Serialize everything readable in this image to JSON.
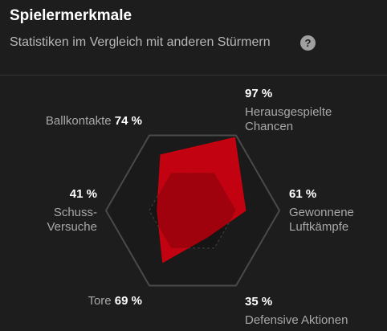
{
  "chart_data": {
    "type": "radar",
    "title": "Spielermerkmale",
    "subtitle": "Statistiken im Vergleich mit anderen Stürmern",
    "help_icon": "?",
    "categories": [
      "Herausgespielte Chancen",
      "Gewonnene Luftkämpfe",
      "Defensive Aktionen",
      "Tore",
      "Schuss-Versuche",
      "Ballkontakte"
    ],
    "values": [
      97,
      61,
      35,
      69,
      41,
      74
    ],
    "value_labels": [
      "97 %",
      "61 %",
      "35 %",
      "69 %",
      "41 %",
      "74 %"
    ],
    "ylim": [
      0,
      100
    ],
    "color": "#d0000f"
  }
}
